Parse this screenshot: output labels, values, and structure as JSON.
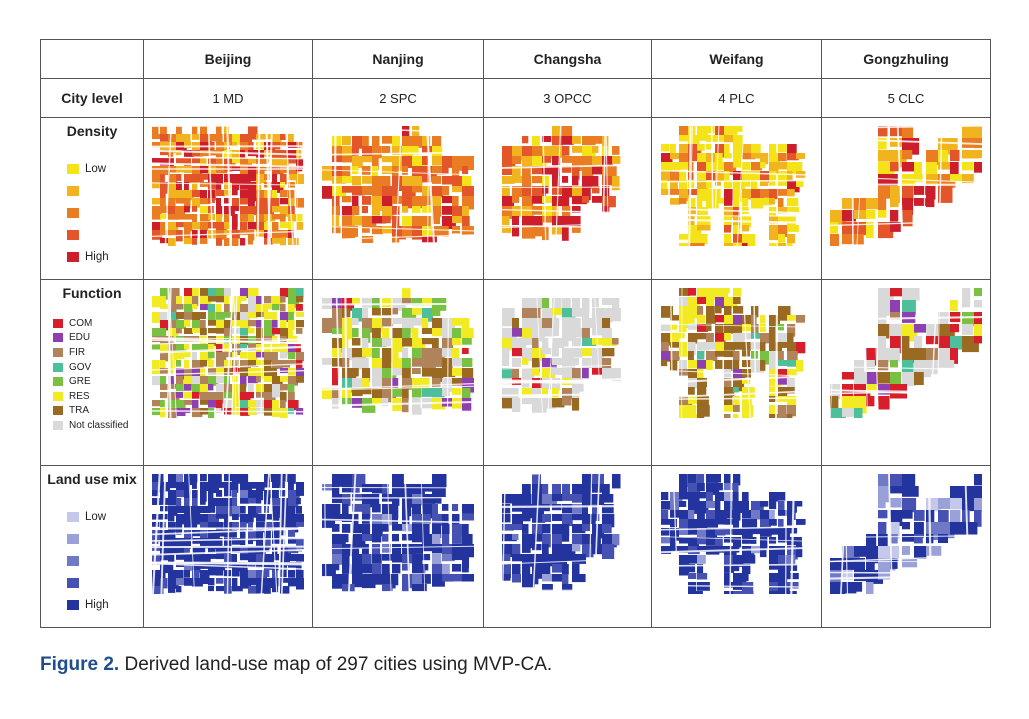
{
  "table": {
    "cities": [
      "Beijing",
      "Nanjing",
      "Changsha",
      "Weifang",
      "Gongzhuling"
    ],
    "city_level_label": "City level",
    "city_levels": [
      "1 MD",
      "2 SPC",
      "3 OPCC",
      "4 PLC",
      "5 CLC"
    ],
    "density": {
      "title": "Density",
      "legend": [
        "Low",
        "",
        "",
        "",
        "High"
      ],
      "colors": [
        "#f5e31a",
        "#f2b41e",
        "#ea7d23",
        "#e2562a",
        "#cc1f2b"
      ]
    },
    "function": {
      "title": "Function",
      "legend": [
        "COM",
        "EDU",
        "FIR",
        "GOV",
        "GRE",
        "RES",
        "TRA",
        "Not classified"
      ],
      "colors": [
        "#d71f2b",
        "#8e3fb0",
        "#b0835a",
        "#4dbf9a",
        "#79c043",
        "#f2ea23",
        "#9a6a22",
        "#d9d9d9"
      ]
    },
    "land_use_mix": {
      "title": "Land use mix",
      "legend": [
        "Low",
        "",
        "",
        "",
        "High"
      ],
      "colors": [
        "#c5c8ea",
        "#9aa0d8",
        "#6f79c6",
        "#4552b3",
        "#23349f"
      ]
    }
  },
  "caption": {
    "label": "Figure 2.",
    "text": " Derived land-use map of 297 cities using MVP-CA."
  }
}
